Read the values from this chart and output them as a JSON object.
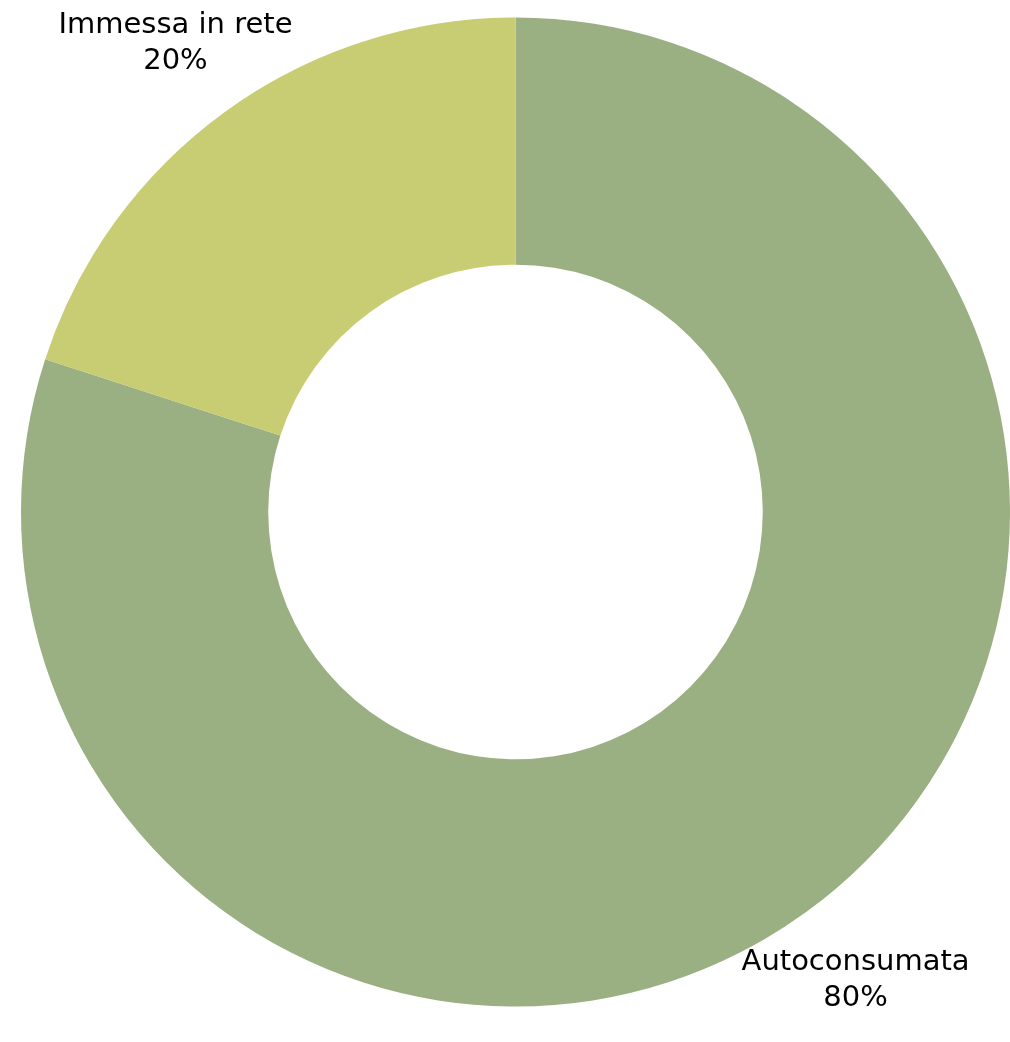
{
  "chart_data": {
    "type": "donut",
    "categories": [
      "Autoconsumata",
      "Immessa in rete"
    ],
    "values": [
      80,
      20
    ],
    "colors": [
      "#9aaf82",
      "#c8cc72"
    ],
    "value_labels": [
      "80%",
      "20%"
    ]
  }
}
